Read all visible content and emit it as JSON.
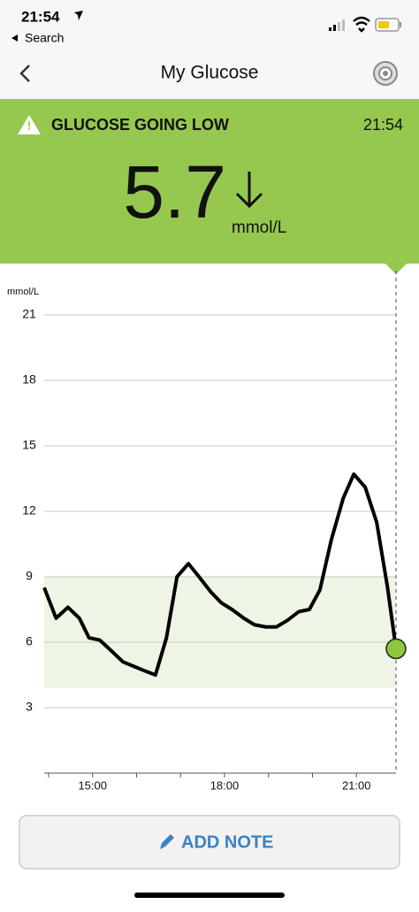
{
  "status_bar": {
    "time": "21:54",
    "back_app": "Search"
  },
  "nav": {
    "title": "My Glucose"
  },
  "alert": {
    "message": "GLUCOSE GOING LOW",
    "time": "21:54",
    "value": "5.7",
    "unit": "mmol/L"
  },
  "chart_data": {
    "type": "line",
    "y_label": "mmol/L",
    "x": [
      13.9,
      14.17,
      14.44,
      14.7,
      14.92,
      15.16,
      15.43,
      15.69,
      15.93,
      16.17,
      16.43,
      16.68,
      16.92,
      17.18,
      17.42,
      17.69,
      17.93,
      18.17,
      18.44,
      18.68,
      18.94,
      19.18,
      19.43,
      19.69,
      19.93,
      20.17,
      20.43,
      20.7,
      20.94,
      21.2,
      21.46,
      21.7,
      21.9
    ],
    "series": [
      {
        "color": "#000000",
        "values": [
          8.5,
          7.1,
          7.6,
          7.1,
          6.2,
          6.1,
          5.6,
          5.1,
          4.9,
          4.7,
          4.5,
          6.2,
          9.0,
          9.6,
          9.0,
          8.3,
          7.8,
          7.5,
          7.1,
          6.8,
          6.7,
          6.7,
          7.0,
          7.4,
          7.5,
          8.4,
          10.7,
          12.6,
          13.7,
          13.1,
          11.5,
          8.6,
          5.7
        ]
      }
    ],
    "xlim": [
      13.9,
      21.9
    ],
    "ylim": [
      0,
      21
    ],
    "yticks": [
      3,
      6,
      9,
      12,
      15,
      18,
      21
    ],
    "xticks": [
      {
        "value": 15,
        "label": "15:00"
      },
      {
        "value": 18,
        "label": "18:00"
      },
      {
        "value": 21,
        "label": "21:00"
      }
    ],
    "x_minor_ticks": [
      14,
      16,
      17,
      19,
      20
    ],
    "grid": true,
    "target_range": [
      3.9,
      9
    ],
    "target_color": "#eef5e4",
    "current_marker_color": "#8dc63f"
  },
  "button": {
    "label": "ADD NOTE"
  }
}
